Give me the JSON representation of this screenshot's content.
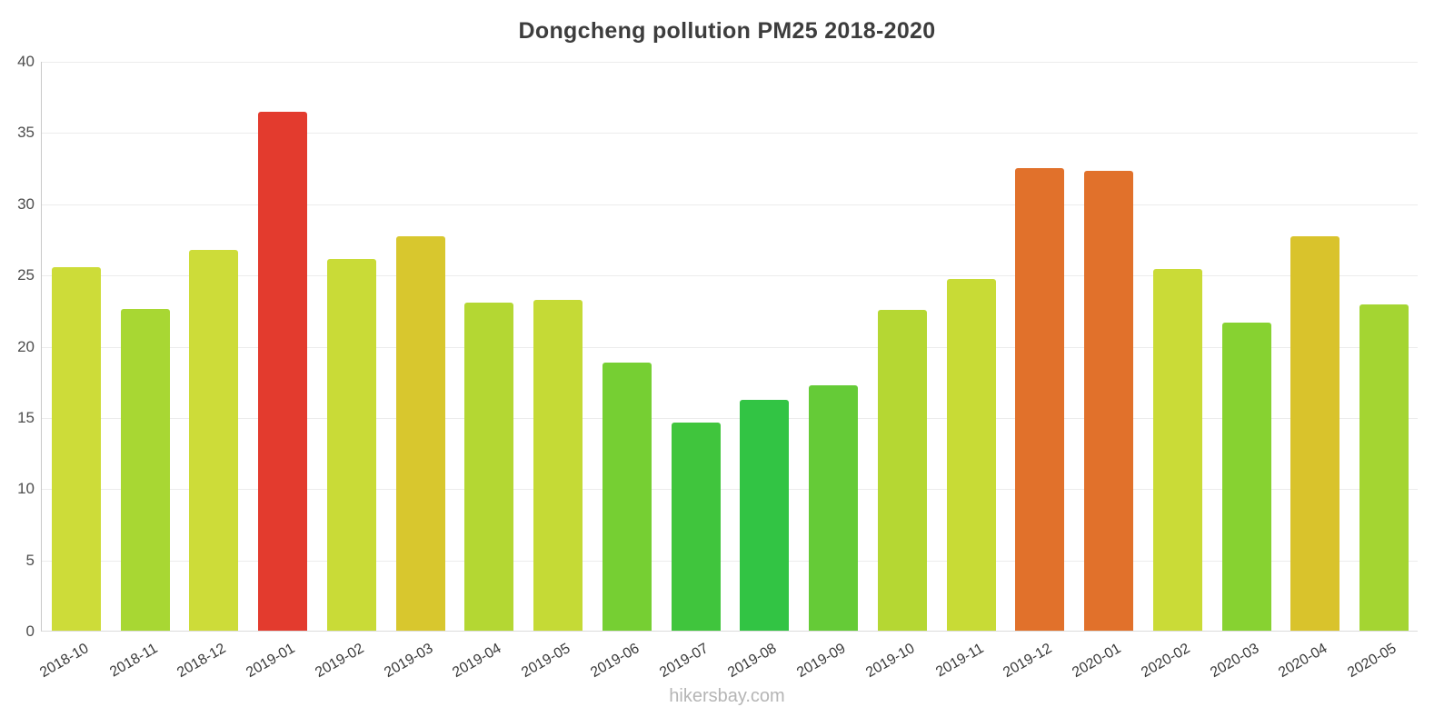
{
  "title": "Dongcheng pollution PM25 2018-2020",
  "watermark": "hikersbay.com",
  "chart_data": {
    "type": "bar",
    "title": "Dongcheng pollution PM25 2018-2020",
    "xlabel": "",
    "ylabel": "",
    "ylim": [
      0,
      40
    ],
    "yticks": [
      0,
      5,
      10,
      15,
      20,
      25,
      30,
      35,
      40
    ],
    "grid": true,
    "legend": false,
    "categories": [
      "2018-10",
      "2018-11",
      "2018-12",
      "2019-01",
      "2019-02",
      "2019-03",
      "2019-04",
      "2019-05",
      "2019-06",
      "2019-07",
      "2019-08",
      "2019-09",
      "2019-10",
      "2019-11",
      "2019-12",
      "2020-01",
      "2020-02",
      "2020-03",
      "2020-04",
      "2020-05"
    ],
    "values": [
      25.5,
      22.6,
      26.7,
      36.4,
      26.1,
      27.7,
      23.0,
      23.2,
      18.8,
      14.6,
      16.2,
      17.2,
      22.5,
      24.7,
      32.5,
      32.3,
      25.4,
      21.6,
      27.7,
      22.9
    ],
    "bar_colors": [
      "#cddc39",
      "#a8d733",
      "#cddc39",
      "#e33b2e",
      "#c9db37",
      "#d8c72e",
      "#b4d733",
      "#c5da36",
      "#76cf33",
      "#40c53d",
      "#32c444",
      "#65cb37",
      "#b5d733",
      "#c8db36",
      "#e1712b",
      "#e1712b",
      "#cadb37",
      "#87d231",
      "#d9c32c",
      "#a4d532"
    ]
  }
}
